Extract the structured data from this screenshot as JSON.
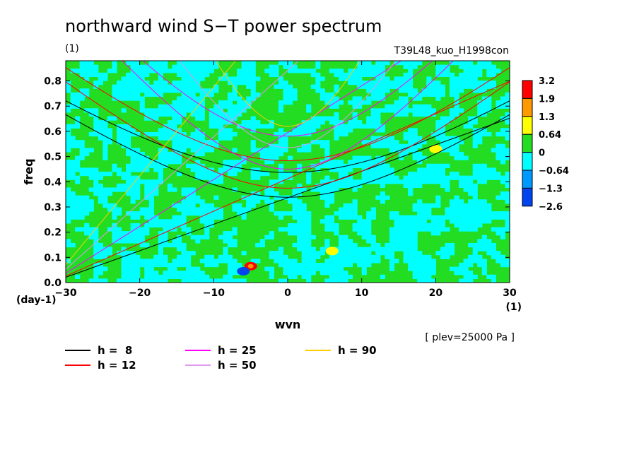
{
  "chart_data": {
    "type": "heatmap",
    "title": "northward wind S−T power spectrum",
    "subtitle_left": "(1)",
    "subtitle_right": "T39L48_kuo_H1998con",
    "xlabel": "wvn",
    "ylabel": "freq",
    "x_unit": "(1)",
    "y_unit": "(day-1)",
    "note": "[ plev=25000 Pa ]",
    "xlim": [
      -30,
      30
    ],
    "ylim": [
      0,
      0.88
    ],
    "x_ticks": [
      -30,
      -20,
      -10,
      0,
      10,
      20,
      30
    ],
    "x_tick_labels": [
      "−30",
      "−20",
      "−10",
      "0",
      "10",
      "20",
      "30"
    ],
    "y_ticks": [
      0.0,
      0.1,
      0.2,
      0.3,
      0.4,
      0.5,
      0.6,
      0.7,
      0.8
    ],
    "y_tick_labels": [
      "0.0",
      "0.1",
      "0.2",
      "0.3",
      "0.4",
      "0.5",
      "0.6",
      "0.7",
      "0.8"
    ],
    "colorbar": {
      "labels": [
        "3.2",
        "1.9",
        "1.3",
        "0.64",
        "0",
        "−0.64",
        "−1.3",
        "−2.6"
      ],
      "colors": [
        "#ff0000",
        "#ff9900",
        "#ffff00",
        "#22dd22",
        "#00ffff",
        "#0099ff",
        "#0044ee"
      ]
    },
    "field_background": {
      "dominant_levels": [
        "0",
        "0.64"
      ],
      "hotspots": [
        {
          "wvn": -5,
          "freq": 0.065,
          "level": "3.2"
        },
        {
          "wvn": -6,
          "freq": 0.045,
          "level": "−2.6"
        },
        {
          "wvn": 6,
          "freq": 0.125,
          "level": "1.3"
        },
        {
          "wvn": 20,
          "freq": 0.53,
          "level": "1.3"
        }
      ]
    },
    "series": [
      {
        "name": "h =  8",
        "color": "#000000",
        "equivalent_depth": 8
      },
      {
        "name": "h = 12",
        "color": "#ff0000",
        "equivalent_depth": 12
      },
      {
        "name": "h = 25",
        "color": "#ff00ff",
        "equivalent_depth": 25
      },
      {
        "name": "h = 50",
        "color": "#dd99ee",
        "equivalent_depth": 50
      },
      {
        "name": "h = 90",
        "color": "#ffcc00",
        "equivalent_depth": 90
      }
    ],
    "curves": [
      {
        "h": 8,
        "color": "#000000",
        "branch": "kelvin"
      },
      {
        "h": 8,
        "color": "#000000",
        "branch": "ig1"
      },
      {
        "h": 8,
        "color": "#000000",
        "branch": "ig2"
      },
      {
        "h": 12,
        "color": "#ff0000",
        "branch": "kelvin"
      },
      {
        "h": 12,
        "color": "#ff0000",
        "branch": "ig1"
      },
      {
        "h": 12,
        "color": "#ff0000",
        "branch": "ig2"
      },
      {
        "h": 25,
        "color": "#ff00ff",
        "branch": "kelvin"
      },
      {
        "h": 25,
        "color": "#ff00ff",
        "branch": "ig1"
      },
      {
        "h": 25,
        "color": "#ff00ff",
        "branch": "ig2"
      },
      {
        "h": 50,
        "color": "#dd99ee",
        "branch": "kelvin"
      },
      {
        "h": 50,
        "color": "#dd99ee",
        "branch": "ig1"
      },
      {
        "h": 90,
        "color": "#ffcc00",
        "branch": "kelvin"
      },
      {
        "h": 90,
        "color": "#ffcc00",
        "branch": "ig1"
      }
    ]
  }
}
